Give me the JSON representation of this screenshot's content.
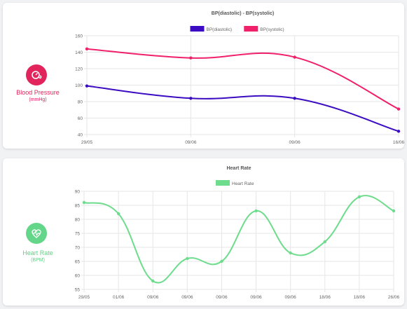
{
  "colors": {
    "bp_accent": "#e2245c",
    "hr_accent": "#64d68a",
    "diastolic": "#3b0cc1",
    "systolic": "#f0206a",
    "heart_rate": "#6ddc8c"
  },
  "bp_card": {
    "title": "Blood Pressure",
    "unit": "(mmHg)",
    "icon": "blood-pressure-icon"
  },
  "hr_card": {
    "title": "Heart Rate",
    "unit": "(BPM)",
    "icon": "heart-rate-icon"
  },
  "chart_data": [
    {
      "type": "line",
      "title": "BP(diastolic) - BP(systolic)",
      "categories": [
        "29/05",
        "09/06",
        "09/06",
        "16/06"
      ],
      "series": [
        {
          "name": "BP(diastolic)",
          "values": [
            99,
            84,
            84,
            44
          ]
        },
        {
          "name": "BP(systolic)",
          "values": [
            144,
            133,
            134,
            71
          ]
        }
      ],
      "ylim": [
        40,
        160
      ],
      "yticks": [
        40,
        60,
        80,
        100,
        120,
        140,
        160
      ],
      "grid": true,
      "legend": "top-center"
    },
    {
      "type": "line",
      "title": "Heart Rate",
      "categories": [
        "29/05",
        "01/06",
        "09/06",
        "09/06",
        "09/06",
        "09/06",
        "09/06",
        "18/06",
        "18/06",
        "26/06"
      ],
      "series": [
        {
          "name": "Heart Rate",
          "values": [
            86,
            82,
            58,
            66,
            65,
            83,
            68,
            72,
            88,
            83
          ]
        }
      ],
      "ylim": [
        55,
        90
      ],
      "yticks": [
        55,
        60,
        65,
        70,
        75,
        80,
        85,
        90
      ],
      "grid": true,
      "legend": "top-center"
    }
  ]
}
